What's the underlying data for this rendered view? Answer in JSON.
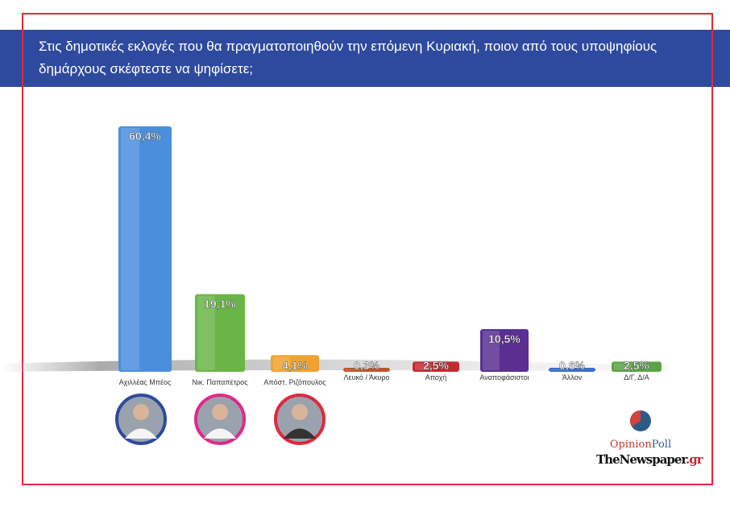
{
  "title": "Στις δημοτικές εκλογές που θα πραγματοποιηθούν την επόμενη Κυριακή, ποιον από τους υποψηφίους δημάρχους σκέφτεστε να ψηφίσετε;",
  "chart_data": {
    "type": "bar",
    "title": "Στις δημοτικές εκλογές που θα πραγματοποιηθούν την επόμενη Κυριακή, ποιον από τους υποψηφίους δημάρχους σκέφτεστε να ψηφίσετε;",
    "categories": [
      "Αχιλλέας Μπέος",
      "Νικ. Παπαπέτρος",
      "Απόστ. Ριζόπουλος",
      "Λευκό / Άκυρο",
      "Αποχή",
      "Αναποφάσιστοι",
      "Άλλον",
      "Δ/Γ, Δ/Α"
    ],
    "values": [
      60.4,
      19.1,
      4.1,
      0.3,
      2.5,
      10.5,
      0.6,
      2.5
    ],
    "value_labels": [
      "60,4%",
      "19,1%",
      "4,1%",
      "0,3%",
      "2,5%",
      "10,5%",
      "0,6%",
      "2,5%"
    ],
    "colors": [
      "#4a8fdc",
      "#6ab547",
      "#f0a230",
      "#c0552a",
      "#c42a30",
      "#5a2e92",
      "#3a6fca",
      "#5aa443"
    ],
    "ylim": [
      0,
      62
    ],
    "grid": false
  },
  "candidate_photo_borders": [
    "#2e4a9e",
    "#e0288c",
    "#e0283c"
  ],
  "logos": {
    "opinion_a": "Opinion",
    "opinion_b": "Poll",
    "newspaper_a": "TheNewspaper",
    "newspaper_b": ".gr"
  }
}
